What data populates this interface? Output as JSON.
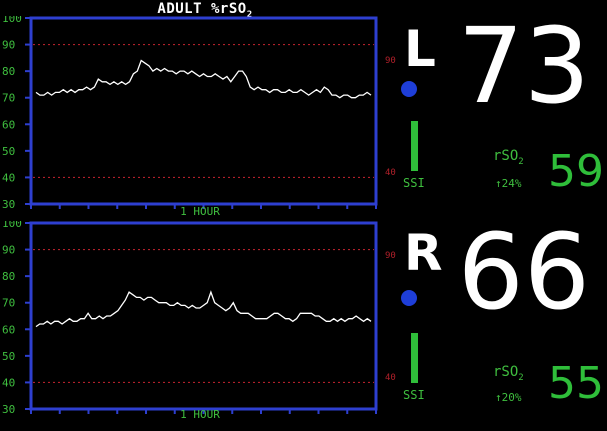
{
  "title": {
    "prefix": "ADULT %rSO",
    "subscript": "2"
  },
  "colors": {
    "background": "#000000",
    "frame": "#2e3fd0",
    "axis_text": "#3fbf3f",
    "limit_line": "#b0202a",
    "trace": "#ffffff",
    "indicator_dot": "#1e3ed8",
    "ssi_bar": "#2fbe3a"
  },
  "y_ticks": [
    "100",
    "90",
    "80",
    "70",
    "60",
    "50",
    "40",
    "30"
  ],
  "y_min": 30,
  "y_max": 100,
  "channels": [
    {
      "side": "L",
      "value": "73",
      "ssi_label": "SSI",
      "rso2_label": {
        "prefix": "rSO",
        "subscript": "2"
      },
      "change": "↑24%",
      "rso2_value": "59",
      "time_label": "1 HOUR",
      "limits": {
        "upper": 90,
        "lower": 40,
        "upper_label": "90",
        "lower_label": "40"
      },
      "trend": [
        72,
        71,
        71,
        72,
        71,
        72,
        72,
        73,
        72,
        73,
        72,
        73,
        73,
        74,
        73,
        74,
        77,
        76,
        76,
        75,
        76,
        75,
        76,
        75,
        76,
        79,
        80,
        84,
        83,
        82,
        80,
        81,
        80,
        81,
        80,
        80,
        79,
        80,
        80,
        79,
        80,
        79,
        78,
        79,
        78,
        78,
        79,
        78,
        77,
        78,
        76,
        78,
        80,
        80,
        78,
        74,
        73,
        74,
        73,
        73,
        72,
        73,
        73,
        72,
        72,
        73,
        72,
        72,
        73,
        72,
        71,
        72,
        73,
        72,
        74,
        73,
        71,
        71,
        70,
        71,
        71,
        70,
        70,
        71,
        71,
        72,
        71
      ]
    },
    {
      "side": "R",
      "value": "66",
      "ssi_label": "SSI",
      "rso2_label": {
        "prefix": "rSO",
        "subscript": "2"
      },
      "change": "↑20%",
      "rso2_value": "55",
      "time_label": "1 HOUR",
      "limits": {
        "upper": 90,
        "lower": 40,
        "upper_label": "90",
        "lower_label": "40"
      },
      "trend": [
        61,
        62,
        62,
        63,
        62,
        63,
        63,
        62,
        63,
        64,
        63,
        63,
        64,
        64,
        66,
        64,
        64,
        65,
        64,
        65,
        65,
        66,
        67,
        69,
        71,
        74,
        73,
        72,
        72,
        71,
        72,
        72,
        71,
        70,
        70,
        70,
        69,
        69,
        70,
        69,
        69,
        68,
        69,
        68,
        68,
        69,
        70,
        74,
        70,
        69,
        68,
        67,
        68,
        70,
        67,
        66,
        66,
        66,
        65,
        64,
        64,
        64,
        64,
        65,
        66,
        66,
        65,
        64,
        64,
        63,
        64,
        66,
        66,
        66,
        66,
        65,
        65,
        64,
        63,
        63,
        64,
        63,
        64,
        63,
        64,
        64,
        65,
        64,
        63,
        64,
        63
      ]
    }
  ]
}
